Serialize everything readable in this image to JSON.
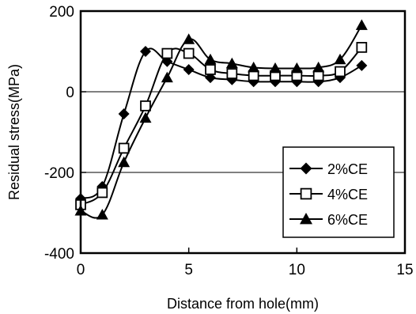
{
  "chart_data": {
    "type": "line",
    "xlabel": "Distance from hole(mm)",
    "ylabel": "Residual stress(MPa)",
    "xlim": [
      0,
      15
    ],
    "ylim": [
      -400,
      200
    ],
    "x_ticks": [
      0,
      5,
      10,
      15
    ],
    "y_ticks": [
      -400,
      -200,
      0,
      200
    ],
    "x_tick_labels": [
      "0",
      "5",
      "10",
      "15"
    ],
    "y_tick_labels": [
      "-400",
      "-200",
      "0",
      "200"
    ],
    "gridlines": "horizontal at -200 and 0",
    "legend_position": "lower-right",
    "series": [
      {
        "name": "2%CE",
        "marker": "diamond",
        "x": [
          0,
          1,
          2,
          3,
          4,
          5,
          6,
          7,
          8,
          9,
          10,
          11,
          12,
          13
        ],
        "y": [
          -265,
          -235,
          -55,
          100,
          75,
          55,
          35,
          30,
          25,
          25,
          25,
          25,
          35,
          65
        ]
      },
      {
        "name": "4%CE",
        "marker": "square-open",
        "x": [
          0,
          1,
          2,
          3,
          4,
          5,
          6,
          7,
          8,
          9,
          10,
          11,
          12,
          13
        ],
        "y": [
          -280,
          -250,
          -140,
          -35,
          95,
          95,
          55,
          45,
          40,
          40,
          40,
          40,
          50,
          110
        ]
      },
      {
        "name": "6%CE",
        "marker": "triangle",
        "x": [
          0,
          1,
          2,
          3,
          4,
          5,
          6,
          7,
          8,
          9,
          10,
          11,
          12,
          13
        ],
        "y": [
          -295,
          -305,
          -175,
          -65,
          35,
          130,
          80,
          70,
          60,
          58,
          58,
          60,
          80,
          165
        ]
      }
    ]
  }
}
